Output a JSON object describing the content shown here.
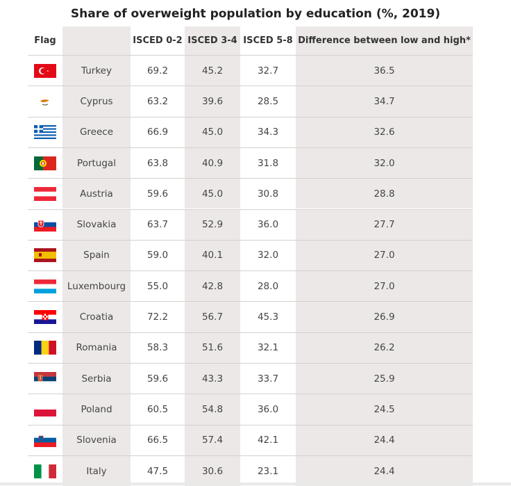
{
  "title": "Share of overweight population by education (%, 2019)",
  "chart_data": {
    "type": "table",
    "title": "Share of overweight population by education (%, 2019)",
    "columns": [
      "Flag",
      "",
      "ISCED 0-2",
      "ISCED 3-4",
      "ISCED 5-8",
      "Difference between low and high*"
    ],
    "rows": [
      {
        "country": "Turkey",
        "flag": "turkey-flag-icon",
        "isced02": "69.2",
        "isced34": "45.2",
        "isced58": "32.7",
        "diff": "36.5"
      },
      {
        "country": "Cyprus",
        "flag": "cyprus-flag-icon",
        "isced02": "63.2",
        "isced34": "39.6",
        "isced58": "28.5",
        "diff": "34.7"
      },
      {
        "country": "Greece",
        "flag": "greece-flag-icon",
        "isced02": "66.9",
        "isced34": "45.0",
        "isced58": "34.3",
        "diff": "32.6"
      },
      {
        "country": "Portugal",
        "flag": "portugal-flag-icon",
        "isced02": "63.8",
        "isced34": "40.9",
        "isced58": "31.8",
        "diff": "32.0"
      },
      {
        "country": "Austria",
        "flag": "austria-flag-icon",
        "isced02": "59.6",
        "isced34": "45.0",
        "isced58": "30.8",
        "diff": "28.8"
      },
      {
        "country": "Slovakia",
        "flag": "slovakia-flag-icon",
        "isced02": "63.7",
        "isced34": "52.9",
        "isced58": "36.0",
        "diff": "27.7"
      },
      {
        "country": "Spain",
        "flag": "spain-flag-icon",
        "isced02": "59.0",
        "isced34": "40.1",
        "isced58": "32.0",
        "diff": "27.0"
      },
      {
        "country": "Luxembourg",
        "flag": "luxembourg-flag-icon",
        "isced02": "55.0",
        "isced34": "42.8",
        "isced58": "28.0",
        "diff": "27.0"
      },
      {
        "country": "Croatia",
        "flag": "croatia-flag-icon",
        "isced02": "72.2",
        "isced34": "56.7",
        "isced58": "45.3",
        "diff": "26.9"
      },
      {
        "country": "Romania",
        "flag": "romania-flag-icon",
        "isced02": "58.3",
        "isced34": "51.6",
        "isced58": "32.1",
        "diff": "26.2"
      },
      {
        "country": "Serbia",
        "flag": "serbia-flag-icon",
        "isced02": "59.6",
        "isced34": "43.3",
        "isced58": "33.7",
        "diff": "25.9"
      },
      {
        "country": "Poland",
        "flag": "poland-flag-icon",
        "isced02": "60.5",
        "isced34": "54.8",
        "isced58": "36.0",
        "diff": "24.5"
      },
      {
        "country": "Slovenia",
        "flag": "slovenia-flag-icon",
        "isced02": "66.5",
        "isced34": "57.4",
        "isced58": "42.1",
        "diff": "24.4"
      },
      {
        "country": "Italy",
        "flag": "italy-flag-icon",
        "isced02": "47.5",
        "isced34": "30.6",
        "isced58": "23.1",
        "diff": "24.4"
      }
    ]
  },
  "colors": {
    "shade": "#ece8e8",
    "grid": "#d4d0d0",
    "text": "#444444"
  }
}
